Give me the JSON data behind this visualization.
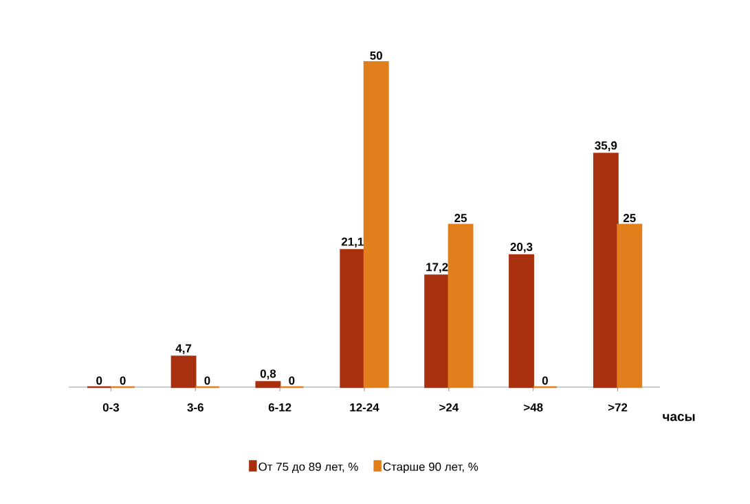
{
  "chart_data": {
    "type": "bar",
    "xlabel": "часы",
    "categories": [
      "0-3",
      "3-6",
      "6-12",
      "12-24",
      ">24",
      ">48",
      ">72"
    ],
    "series": [
      {
        "name": "От 75 до 89 лет, %",
        "color": "#a8300f",
        "values": [
          0,
          4.7,
          0.8,
          21.1,
          17.2,
          20.3,
          35.9
        ],
        "value_labels": [
          "0",
          "4,7",
          "0,8",
          "21,1",
          "17,2",
          "20,3",
          "35,9"
        ]
      },
      {
        "name": "Старше 90 лет, %",
        "color": "#e07f1b",
        "values": [
          0,
          0,
          0,
          50,
          25,
          0,
          25
        ],
        "value_labels": [
          "0",
          "0",
          "0",
          "50",
          "25",
          "0",
          "25"
        ]
      }
    ],
    "legend": "bottom",
    "tick_labels": "x"
  }
}
